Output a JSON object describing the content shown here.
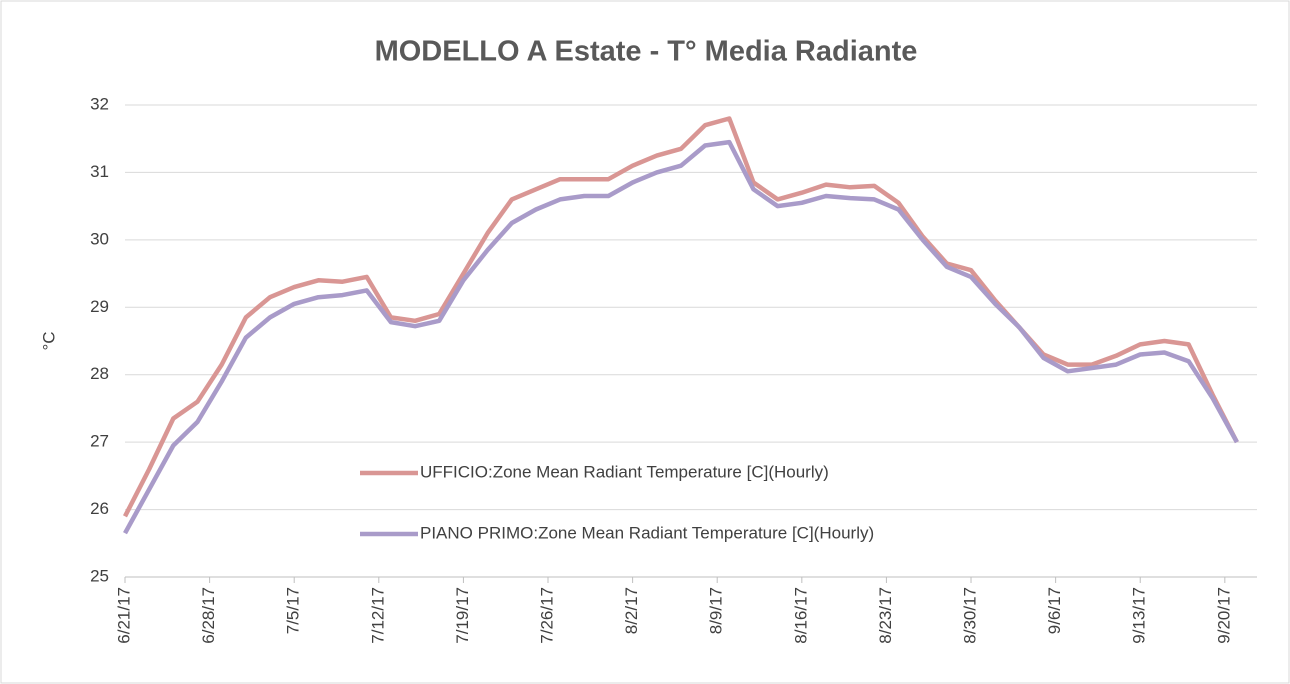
{
  "chart_data": {
    "type": "line",
    "title": "MODELLO A Estate - T° Media Radiante",
    "y_label": "°C",
    "x": [
      "2017-06-21",
      "2017-06-23",
      "2017-06-25",
      "2017-06-27",
      "2017-06-29",
      "2017-07-01",
      "2017-07-03",
      "2017-07-05",
      "2017-07-07",
      "2017-07-09",
      "2017-07-11",
      "2017-07-13",
      "2017-07-15",
      "2017-07-17",
      "2017-07-19",
      "2017-07-21",
      "2017-07-23",
      "2017-07-25",
      "2017-07-27",
      "2017-07-29",
      "2017-07-31",
      "2017-08-02",
      "2017-08-04",
      "2017-08-06",
      "2017-08-08",
      "2017-08-10",
      "2017-08-12",
      "2017-08-14",
      "2017-08-16",
      "2017-08-18",
      "2017-08-20",
      "2017-08-22",
      "2017-08-24",
      "2017-08-26",
      "2017-08-28",
      "2017-08-30",
      "2017-09-01",
      "2017-09-03",
      "2017-09-05",
      "2017-09-07",
      "2017-09-09",
      "2017-09-11",
      "2017-09-13",
      "2017-09-15",
      "2017-09-17",
      "2017-09-19",
      "2017-09-21"
    ],
    "series": [
      {
        "name": "UFFICIO:Zone Mean Radiant Temperature [C](Hourly)",
        "color": "#d99694",
        "values": [
          25.9,
          26.6,
          27.35,
          27.6,
          28.15,
          28.85,
          29.15,
          29.3,
          29.4,
          29.38,
          29.45,
          28.85,
          28.8,
          28.9,
          29.5,
          30.1,
          30.6,
          30.75,
          30.9,
          30.9,
          30.9,
          31.1,
          31.25,
          31.35,
          31.7,
          31.8,
          30.85,
          30.6,
          30.7,
          30.82,
          30.78,
          30.8,
          30.55,
          30.05,
          29.65,
          29.55,
          29.1,
          28.7,
          28.3,
          28.15,
          28.15,
          28.28,
          28.45,
          28.5,
          28.45,
          27.7,
          27.0
        ]
      },
      {
        "name": "PIANO PRIMO:Zone Mean Radiant Temperature [C](Hourly)",
        "color": "#a99bc9",
        "values": [
          25.65,
          26.3,
          26.95,
          27.3,
          27.9,
          28.55,
          28.85,
          29.05,
          29.15,
          29.18,
          29.25,
          28.78,
          28.72,
          28.8,
          29.4,
          29.85,
          30.25,
          30.45,
          30.6,
          30.65,
          30.65,
          30.85,
          31.0,
          31.1,
          31.4,
          31.45,
          30.75,
          30.5,
          30.55,
          30.65,
          30.62,
          30.6,
          30.45,
          30.0,
          29.6,
          29.45,
          29.05,
          28.7,
          28.25,
          28.05,
          28.1,
          28.15,
          28.3,
          28.33,
          28.2,
          27.65,
          27.0
        ]
      }
    ],
    "xlim": [
      "2017-06-21",
      "2017-09-22"
    ],
    "xticks": [
      {
        "value": "2017-06-21",
        "label": "6/21/17"
      },
      {
        "value": "2017-06-28",
        "label": "6/28/17"
      },
      {
        "value": "2017-07-05",
        "label": "7/5/17"
      },
      {
        "value": "2017-07-12",
        "label": "7/12/17"
      },
      {
        "value": "2017-07-19",
        "label": "7/19/17"
      },
      {
        "value": "2017-07-26",
        "label": "7/26/17"
      },
      {
        "value": "2017-08-02",
        "label": "8/2/17"
      },
      {
        "value": "2017-08-09",
        "label": "8/9/17"
      },
      {
        "value": "2017-08-16",
        "label": "8/16/17"
      },
      {
        "value": "2017-08-23",
        "label": "8/23/17"
      },
      {
        "value": "2017-08-30",
        "label": "8/30/17"
      },
      {
        "value": "2017-09-06",
        "label": "9/6/17"
      },
      {
        "value": "2017-09-13",
        "label": "9/13/17"
      },
      {
        "value": "2017-09-20",
        "label": "9/20/17"
      }
    ],
    "ylim": [
      25,
      32
    ],
    "yticks": [
      25,
      26,
      27,
      28,
      29,
      30,
      31,
      32
    ],
    "grid": true
  }
}
